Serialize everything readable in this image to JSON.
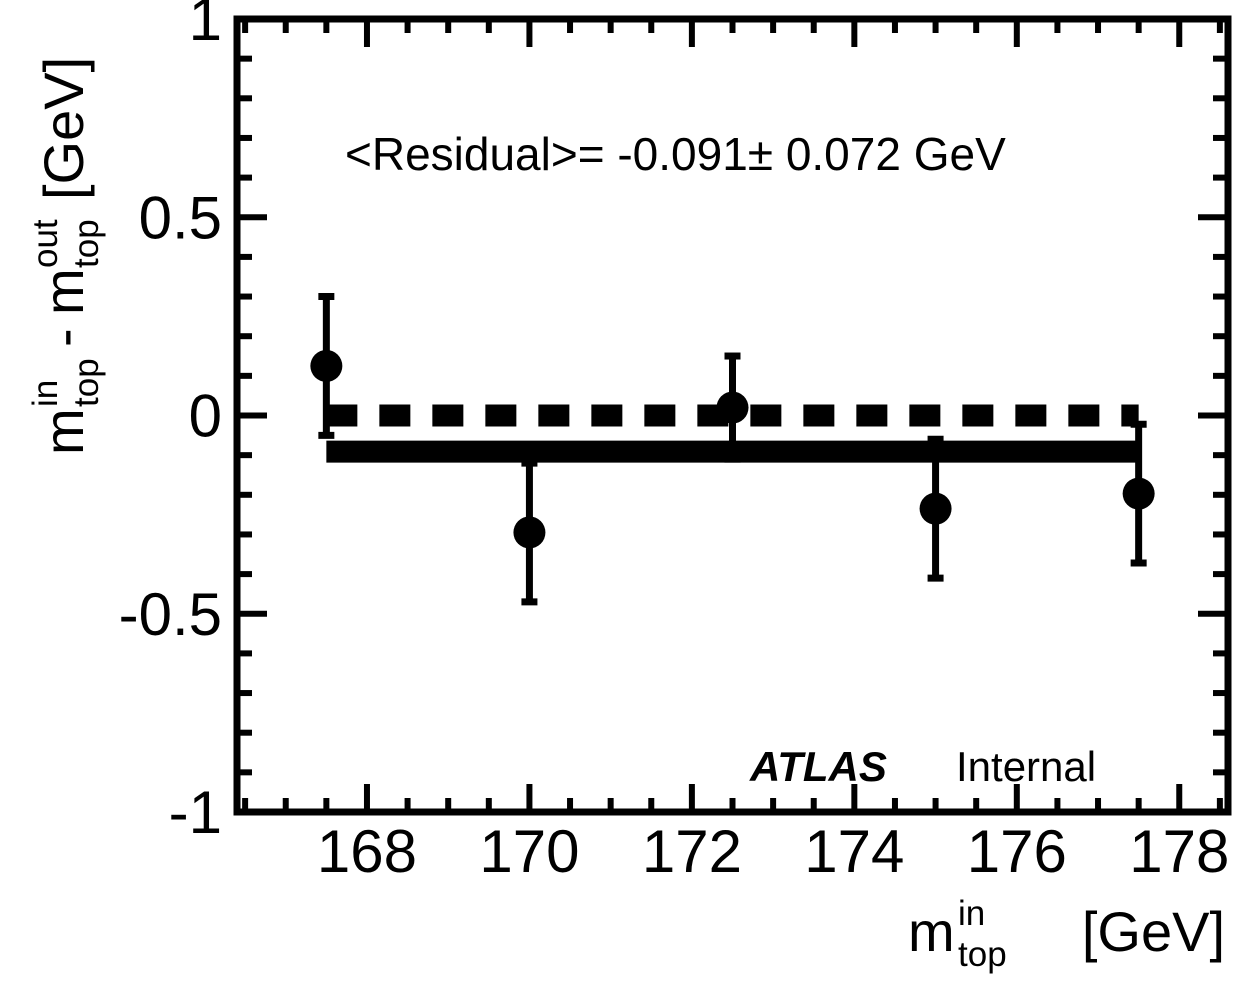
{
  "chart_data": {
    "type": "scatter",
    "x": [
      167.5,
      170.0,
      172.5,
      175.0,
      177.5
    ],
    "series": [
      {
        "values": [
          0.125,
          -0.295,
          0.02,
          -0.235,
          -0.197
        ],
        "errors": [
          0.175,
          0.175,
          0.13,
          0.175,
          0.175
        ]
      }
    ],
    "reference_line": {
      "y": 0.0,
      "style": "dashed"
    },
    "fit_line": {
      "y": -0.091,
      "x_range": [
        167.5,
        177.5
      ],
      "style": "solid"
    },
    "xlim": [
      166.4,
      178.6
    ],
    "ylim": [
      -1,
      1
    ],
    "xticks": [
      "168",
      "170",
      "172",
      "174",
      "176",
      "178"
    ],
    "yticks": [
      "-1",
      "-0.5",
      "0",
      "0.5",
      "1"
    ],
    "xlabel": {
      "main": "m",
      "sup": "in",
      "sub": "top",
      "unit": "[GeV]"
    },
    "ylabel": {
      "m1": "m",
      "sup1": "in",
      "sub1": "top",
      "minus": "-",
      "m2": "m",
      "sup2": "out",
      "sub2": "top",
      "unit": "[GeV]"
    },
    "annotation": "<Residual>= -0.091± 0.072 GeV",
    "experiment_label": "ATLAS",
    "status_label": "Internal",
    "grid": false,
    "colors": {
      "marker": "#000000",
      "line": "#000000",
      "frame": "#000000"
    }
  }
}
